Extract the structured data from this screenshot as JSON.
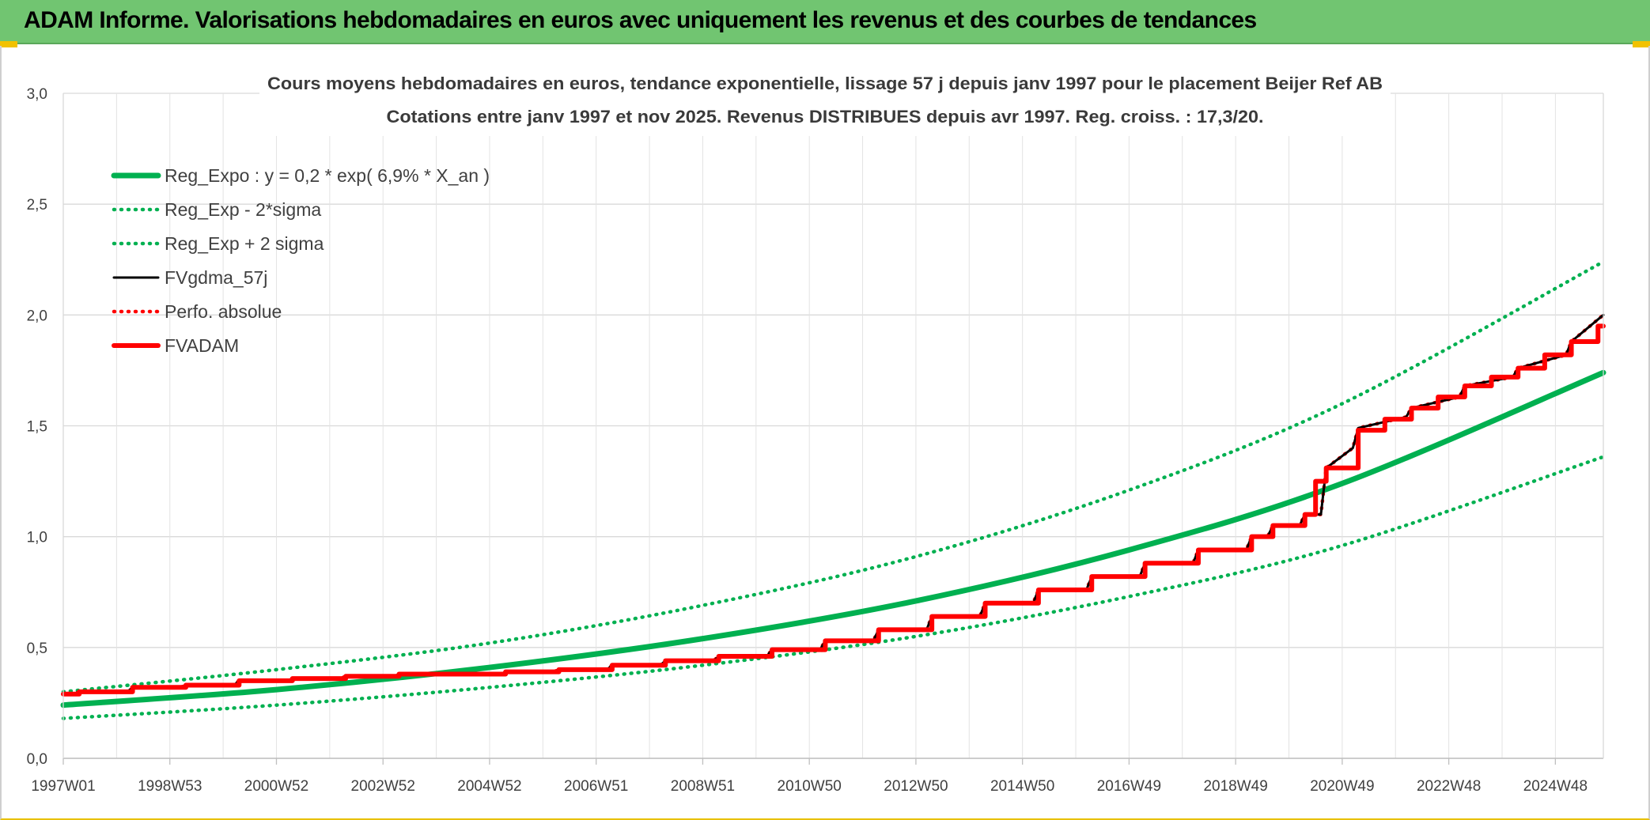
{
  "banner": {
    "title": "ADAM Informe. Valorisations hebdomadaires en euros avec uniquement les revenus et des courbes de tendances"
  },
  "colors": {
    "banner_bg": "#71c571",
    "green": "#00b050",
    "black": "#000000",
    "red": "#ff0000",
    "grid": "#d9d9d9",
    "accent_yellow": "#f2c200"
  },
  "chart_data": {
    "type": "line",
    "title_line1": "Cours moyens hebdomadaires en euros, tendance exponentielle, lissage 57 j depuis janv 1997 pour le placement Beijer Ref AB",
    "title_line2": "Cotations entre janv 1997 et nov 2025. Revenus DISTRIBUES depuis avr 1997. Reg. croiss. : 17,3/20.",
    "xlabel": "",
    "ylabel": "",
    "xlim": [
      1997.0,
      2025.9
    ],
    "ylim": [
      0,
      3
    ],
    "y_ticks": [
      "0,0",
      "0,5",
      "1,0",
      "1,5",
      "2,0",
      "2,5",
      "3,0"
    ],
    "x_ticks": [
      {
        "label": "1997W01",
        "x": 1997.0
      },
      {
        "label": "1998W53",
        "x": 1999.0
      },
      {
        "label": "2000W52",
        "x": 2001.0
      },
      {
        "label": "2002W52",
        "x": 2003.0
      },
      {
        "label": "2004W52",
        "x": 2005.0
      },
      {
        "label": "2006W51",
        "x": 2007.0
      },
      {
        "label": "2008W51",
        "x": 2009.0
      },
      {
        "label": "2010W50",
        "x": 2011.0
      },
      {
        "label": "2012W50",
        "x": 2013.0
      },
      {
        "label": "2014W50",
        "x": 2015.0
      },
      {
        "label": "2016W49",
        "x": 2017.0
      },
      {
        "label": "2018W49",
        "x": 2019.0
      },
      {
        "label": "2020W49",
        "x": 2021.0
      },
      {
        "label": "2022W48",
        "x": 2023.0
      },
      {
        "label": "2024W48",
        "x": 2025.0
      }
    ],
    "grid": true,
    "legend_position": "top-left",
    "series": [
      {
        "name": "Reg_Expo : y = 0,2 * exp( 6,9% *  X_an )",
        "style": "solid-thick",
        "color": "#00b050",
        "x": [
          1997.0,
          2001.0,
          2005.0,
          2009.0,
          2013.0,
          2017.0,
          2021.0,
          2025.9
        ],
        "y": [
          0.24,
          0.31,
          0.41,
          0.54,
          0.71,
          0.94,
          1.24,
          1.74
        ]
      },
      {
        "name": "Reg_Exp - 2*sigma",
        "style": "dotted",
        "color": "#00b050",
        "x": [
          1997.0,
          2001.0,
          2005.0,
          2009.0,
          2013.0,
          2017.0,
          2021.0,
          2025.9
        ],
        "y": [
          0.18,
          0.24,
          0.32,
          0.42,
          0.55,
          0.73,
          0.96,
          1.36
        ]
      },
      {
        "name": "Reg_Exp + 2 sigma",
        "style": "dotted",
        "color": "#00b050",
        "x": [
          1997.0,
          2001.0,
          2005.0,
          2009.0,
          2013.0,
          2017.0,
          2021.0,
          2025.9
        ],
        "y": [
          0.3,
          0.4,
          0.52,
          0.69,
          0.91,
          1.21,
          1.6,
          2.24
        ]
      },
      {
        "name": "FVgdma_57j",
        "style": "solid-thin",
        "color": "#000000",
        "x": [
          1997.0,
          1997.2,
          1997.3,
          1998.2,
          1998.3,
          1999.2,
          1999.3,
          2000.2,
          2000.3,
          2001.2,
          2001.3,
          2002.2,
          2002.3,
          2003.2,
          2003.3,
          2004.2,
          2004.3,
          2005.2,
          2005.3,
          2006.2,
          2006.3,
          2007.2,
          2007.3,
          2008.2,
          2008.3,
          2009.2,
          2009.3,
          2010.2,
          2010.3,
          2011.2,
          2011.3,
          2012.2,
          2012.3,
          2013.2,
          2013.3,
          2014.2,
          2014.3,
          2015.2,
          2015.3,
          2016.2,
          2016.3,
          2017.2,
          2017.3,
          2018.2,
          2018.3,
          2019.2,
          2019.3,
          2019.6,
          2019.7,
          2020.2,
          2020.3,
          2020.6,
          2020.7,
          2021.2,
          2021.3,
          2022.2,
          2022.3,
          2023.2,
          2023.3,
          2024.2,
          2024.3,
          2025.2,
          2025.3,
          2025.9
        ],
        "y": [
          0.29,
          0.29,
          0.3,
          0.3,
          0.32,
          0.32,
          0.33,
          0.33,
          0.35,
          0.35,
          0.36,
          0.36,
          0.37,
          0.37,
          0.38,
          0.38,
          0.38,
          0.38,
          0.39,
          0.39,
          0.4,
          0.4,
          0.42,
          0.42,
          0.44,
          0.44,
          0.46,
          0.46,
          0.49,
          0.49,
          0.53,
          0.53,
          0.58,
          0.58,
          0.64,
          0.64,
          0.7,
          0.7,
          0.76,
          0.76,
          0.82,
          0.82,
          0.88,
          0.88,
          0.94,
          0.94,
          1.0,
          1.0,
          1.05,
          1.05,
          1.1,
          1.1,
          1.31,
          1.4,
          1.49,
          1.54,
          1.58,
          1.63,
          1.68,
          1.72,
          1.76,
          1.82,
          1.88,
          2.0
        ]
      },
      {
        "name": "Perfo. absolue",
        "style": "dotted",
        "color": "#ff0000",
        "x": [
          1997.0,
          1997.2,
          1997.3,
          1998.2,
          1998.3,
          1999.2,
          1999.3,
          2000.2,
          2000.3,
          2001.2,
          2001.3,
          2002.2,
          2002.3,
          2003.2,
          2003.3,
          2004.2,
          2004.3,
          2005.2,
          2005.3,
          2006.2,
          2006.3,
          2007.2,
          2007.3,
          2008.2,
          2008.3,
          2009.2,
          2009.3,
          2010.2,
          2010.3,
          2011.2,
          2011.3,
          2012.2,
          2012.3,
          2013.2,
          2013.3,
          2014.2,
          2014.3,
          2015.2,
          2015.3,
          2016.2,
          2016.3,
          2017.2,
          2017.3,
          2018.2,
          2018.3,
          2019.2,
          2019.3,
          2019.6,
          2019.7,
          2020.2,
          2020.3,
          2020.6,
          2020.7,
          2021.2,
          2021.3,
          2022.2,
          2022.3,
          2023.2,
          2023.3,
          2024.2,
          2024.3,
          2025.2,
          2025.3,
          2025.9
        ],
        "y": [
          0.29,
          0.29,
          0.3,
          0.3,
          0.32,
          0.32,
          0.33,
          0.33,
          0.35,
          0.35,
          0.36,
          0.36,
          0.37,
          0.37,
          0.38,
          0.38,
          0.38,
          0.38,
          0.39,
          0.39,
          0.4,
          0.4,
          0.42,
          0.42,
          0.44,
          0.44,
          0.46,
          0.46,
          0.49,
          0.49,
          0.53,
          0.53,
          0.58,
          0.58,
          0.64,
          0.64,
          0.7,
          0.7,
          0.76,
          0.76,
          0.82,
          0.82,
          0.88,
          0.88,
          0.94,
          0.94,
          1.0,
          1.0,
          1.05,
          1.05,
          1.1,
          1.1,
          1.31,
          1.4,
          1.49,
          1.54,
          1.58,
          1.63,
          1.68,
          1.72,
          1.76,
          1.82,
          1.88,
          2.0
        ]
      },
      {
        "name": "FVADAM",
        "style": "step-thick",
        "color": "#ff0000",
        "x": [
          1997.0,
          1997.3,
          1998.3,
          1999.3,
          2000.3,
          2001.3,
          2002.3,
          2003.3,
          2004.3,
          2005.3,
          2006.3,
          2007.3,
          2008.3,
          2009.3,
          2010.3,
          2011.3,
          2012.3,
          2013.3,
          2014.3,
          2015.3,
          2016.3,
          2017.3,
          2018.3,
          2019.3,
          2019.7,
          2020.3,
          2020.5,
          2020.7,
          2021.3,
          2021.8,
          2022.3,
          2022.8,
          2023.3,
          2023.8,
          2024.3,
          2024.8,
          2025.3,
          2025.8
        ],
        "y": [
          0.29,
          0.3,
          0.32,
          0.33,
          0.35,
          0.36,
          0.37,
          0.38,
          0.38,
          0.39,
          0.4,
          0.42,
          0.44,
          0.46,
          0.49,
          0.53,
          0.58,
          0.64,
          0.7,
          0.76,
          0.82,
          0.88,
          0.94,
          1.0,
          1.05,
          1.1,
          1.25,
          1.31,
          1.48,
          1.53,
          1.58,
          1.63,
          1.68,
          1.72,
          1.76,
          1.82,
          1.88,
          1.95
        ]
      }
    ]
  }
}
